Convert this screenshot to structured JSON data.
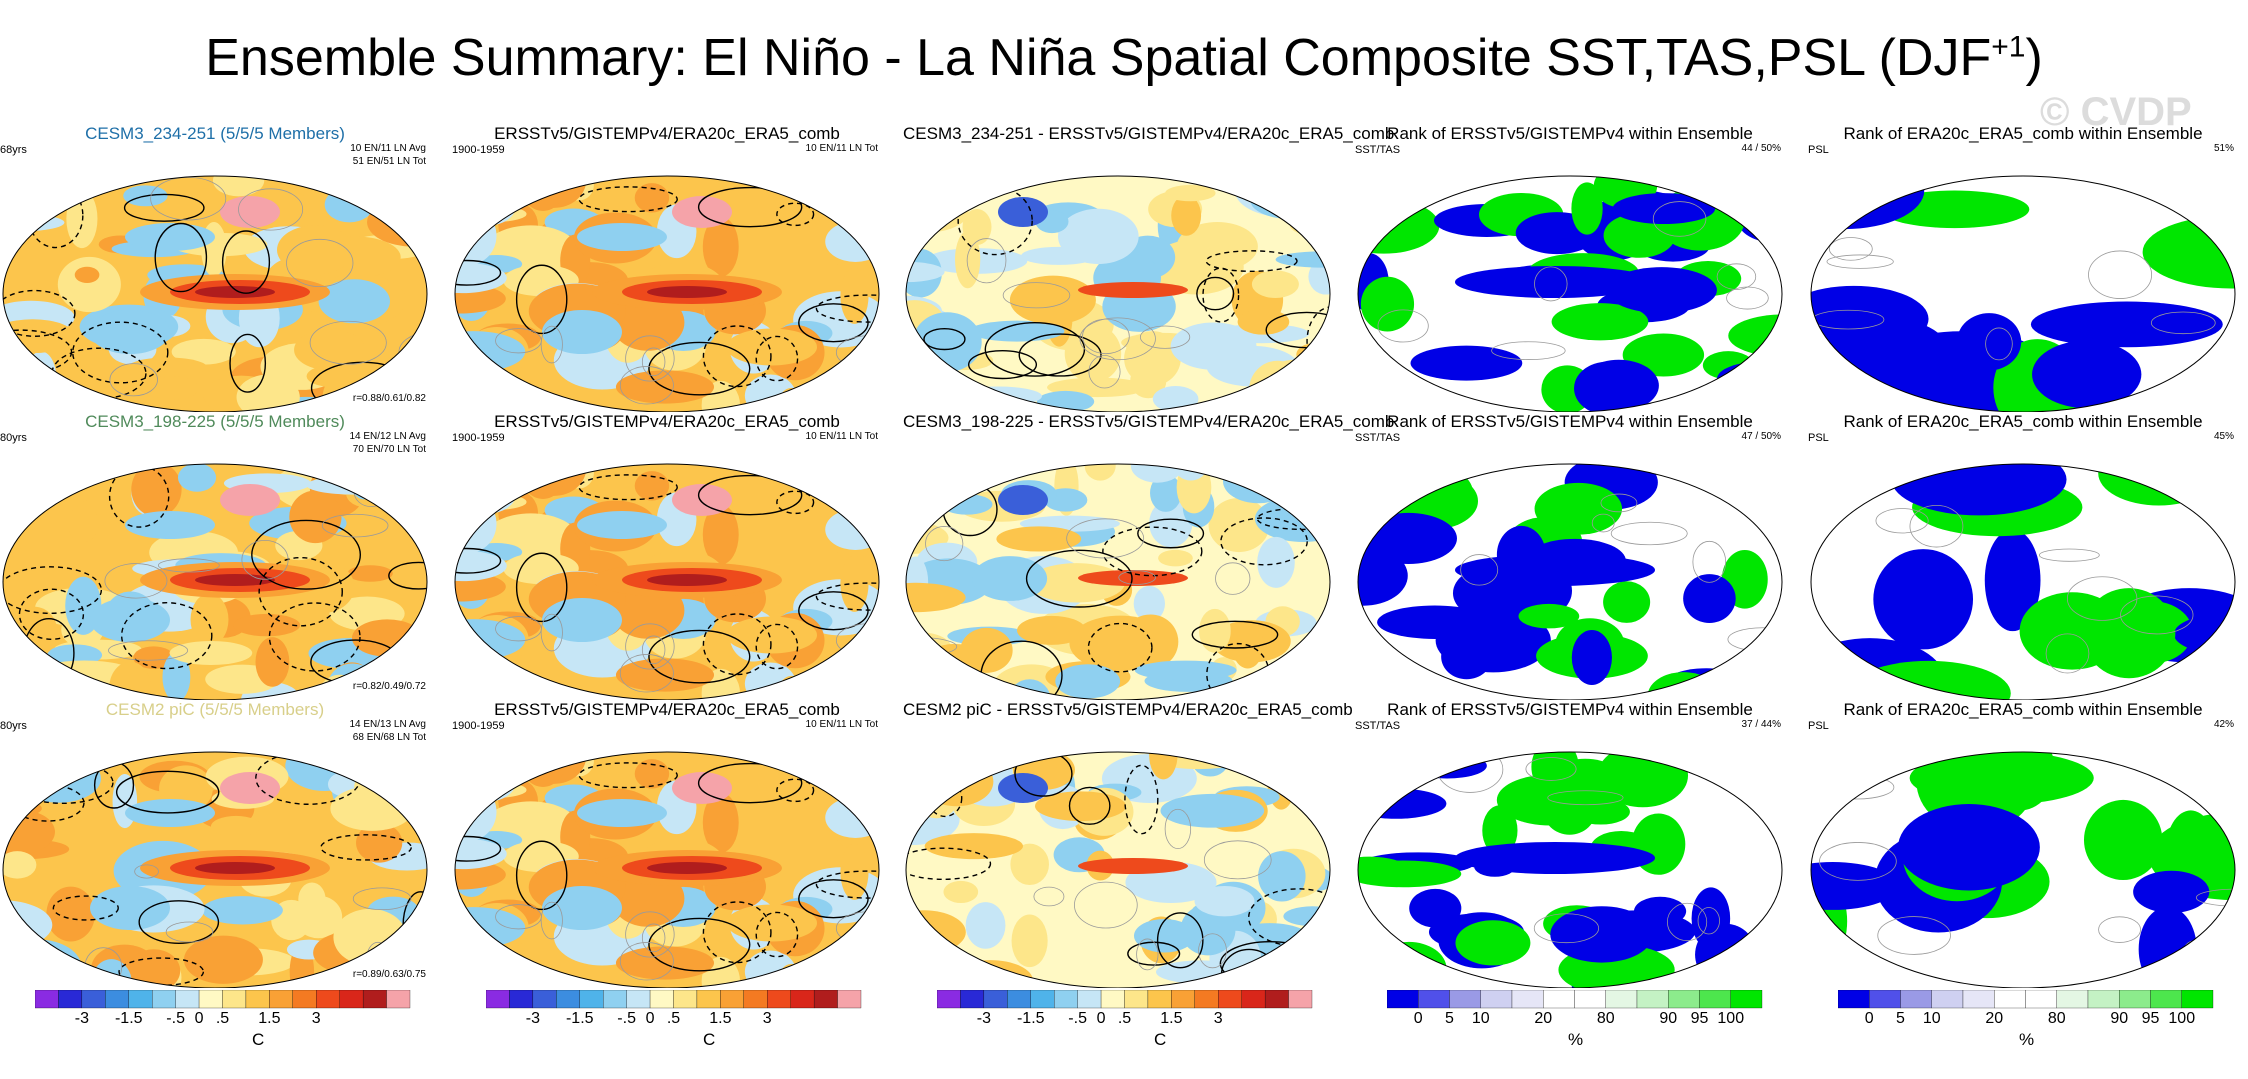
{
  "figure": {
    "title": "Ensemble Summary: El Niño - La Niña Spatial Composite SST,TAS,PSL (DJF",
    "title_sup": "+1",
    "suffix": ")",
    "watermark": "© CVDP"
  },
  "chart_data": {
    "type": "heatmap",
    "rows": [
      {
        "model": {
          "title": "CESM3_234-251 (5/5/5 Members)",
          "title_color": "#1e6fa8",
          "years": "68yrs",
          "info1": "10 EN/11 LN Avg",
          "info2": "51 EN/51 LN Tot",
          "r": "r=0.88/0.61/0.82"
        },
        "obs": {
          "title": "ERSSTv5/GISTEMPv4/ERA20c_ERA5_comb",
          "years": "1900-1959",
          "info": "10 EN/11 LN Tot"
        },
        "diff": {
          "title": "CESM3_234-251 - ERSSTv5/GISTEMPv4/ERA20c_ERA5_comb"
        },
        "rank_sst": {
          "title": "Rank of ERSSTv5/GISTEMPv4 within Ensemble",
          "label": "SST/TAS",
          "pct": "44 /  50%"
        },
        "rank_psl": {
          "title": "Rank of ERA20c_ERA5_comb within Ensemble",
          "label": "PSL",
          "pct": "51%"
        }
      },
      {
        "model": {
          "title": "CESM3_198-225 (5/5/5 Members)",
          "title_color": "#4f8a5a",
          "years": "80yrs",
          "info1": "14 EN/12 LN Avg",
          "info2": "70 EN/70 LN Tot",
          "r": "r=0.82/0.49/0.72"
        },
        "obs": {
          "title": "ERSSTv5/GISTEMPv4/ERA20c_ERA5_comb",
          "years": "1900-1959",
          "info": "10 EN/11 LN Tot"
        },
        "diff": {
          "title": "CESM3_198-225 - ERSSTv5/GISTEMPv4/ERA20c_ERA5_comb"
        },
        "rank_sst": {
          "title": "Rank of ERSSTv5/GISTEMPv4 within Ensemble",
          "label": "SST/TAS",
          "pct": "47 /  50%"
        },
        "rank_psl": {
          "title": "Rank of ERA20c_ERA5_comb within Ensemble",
          "label": "PSL",
          "pct": "45%"
        }
      },
      {
        "model": {
          "title": "CESM2 piC (5/5/5 Members)",
          "title_color": "#d8cf8a",
          "years": "80yrs",
          "info1": "14 EN/13 LN Avg",
          "info2": "68 EN/68 LN Tot",
          "r": "r=0.89/0.63/0.75"
        },
        "obs": {
          "title": "ERSSTv5/GISTEMPv4/ERA20c_ERA5_comb",
          "years": "1900-1959",
          "info": "10 EN/11 LN Tot"
        },
        "diff": {
          "title": "CESM2 piC - ERSSTv5/GISTEMPv4/ERA20c_ERA5_comb"
        },
        "rank_sst": {
          "title": "Rank of ERSSTv5/GISTEMPv4 within Ensemble",
          "label": "SST/TAS",
          "pct": "37 /  44%"
        },
        "rank_psl": {
          "title": "Rank of ERA20c_ERA5_comb within Ensemble",
          "label": "PSL",
          "pct": "42%"
        }
      }
    ],
    "temp_colorbar": {
      "units": "C",
      "labels": [
        "-3",
        "-1.5",
        "-.5",
        "0",
        ".5",
        "1.5",
        "3"
      ],
      "colors": [
        "#8a2be2",
        "#2929d6",
        "#3a5fd9",
        "#3c8de0",
        "#4fb3ea",
        "#8fd0f0",
        "#c6e6f6",
        "#fff9c4",
        "#fde68a",
        "#fcc54c",
        "#f9a135",
        "#f47a22",
        "#ee4a1c",
        "#d9261a",
        "#b01d1d",
        "#f5a3a9"
      ]
    },
    "rank_colorbar": {
      "units": "%",
      "labels": [
        "0",
        "5",
        "10",
        "20",
        "80",
        "90",
        "95",
        "100"
      ],
      "colors": [
        "#0000e6",
        "#5050ea",
        "#9a9ae6",
        "#cfd0f1",
        "#e6e6f7",
        "#ffffff",
        "#ffffff",
        "#e4f7e4",
        "#c4f2c4",
        "#8ceb8c",
        "#4de64d",
        "#00e600"
      ]
    }
  }
}
